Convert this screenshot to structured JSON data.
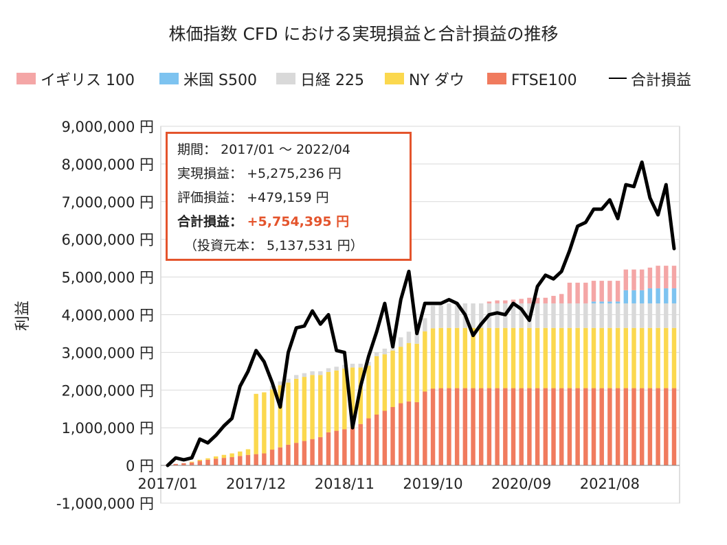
{
  "chart_data": {
    "type": "bar",
    "stacked": true,
    "title": "株価指数 CFD における実現損益と合計損益の推移",
    "ylabel": "利益",
    "ylim": [
      -1000000,
      9000000
    ],
    "y_ticks": [
      -1000000,
      0,
      1000000,
      2000000,
      3000000,
      4000000,
      5000000,
      6000000,
      7000000,
      8000000,
      9000000
    ],
    "y_tick_labels": [
      "-1,000,000 円",
      "0 円",
      "1,000,000 円",
      "2,000,000 円",
      "3,000,000 円",
      "4,000,000 円",
      "5,000,000 円",
      "6,000,000 円",
      "7,000,000 円",
      "8,000,000 円",
      "9,000,000 円"
    ],
    "x_tick_labels": [
      "2017/01",
      "2017/12",
      "2018/11",
      "2019/10",
      "2020/09",
      "2021/08"
    ],
    "grid": true,
    "legend_position": "top",
    "x": [
      "2017/01",
      "2017/02",
      "2017/03",
      "2017/04",
      "2017/05",
      "2017/06",
      "2017/07",
      "2017/08",
      "2017/09",
      "2017/10",
      "2017/11",
      "2017/12",
      "2018/01",
      "2018/02",
      "2018/03",
      "2018/04",
      "2018/05",
      "2018/06",
      "2018/07",
      "2018/08",
      "2018/09",
      "2018/10",
      "2018/11",
      "2018/12",
      "2019/01",
      "2019/02",
      "2019/03",
      "2019/04",
      "2019/05",
      "2019/06",
      "2019/07",
      "2019/08",
      "2019/09",
      "2019/10",
      "2019/11",
      "2019/12",
      "2020/01",
      "2020/02",
      "2020/03",
      "2020/04",
      "2020/05",
      "2020/06",
      "2020/07",
      "2020/08",
      "2020/09",
      "2020/10",
      "2020/11",
      "2020/12",
      "2021/01",
      "2021/02",
      "2021/03",
      "2021/04",
      "2021/05",
      "2021/06",
      "2021/07",
      "2021/08",
      "2021/09",
      "2021/10",
      "2021/11",
      "2021/12",
      "2022/01",
      "2022/02",
      "2022/03",
      "2022/04"
    ],
    "series": [
      {
        "name": "FTSE100",
        "color": "#f07b5e",
        "values": [
          20000,
          40000,
          60000,
          80000,
          120000,
          150000,
          180000,
          200000,
          220000,
          250000,
          280000,
          300000,
          320000,
          420000,
          480000,
          550000,
          600000,
          650000,
          700000,
          750000,
          880000,
          920000,
          960000,
          1000000,
          1100000,
          1250000,
          1350000,
          1450000,
          1550000,
          1650000,
          1700000,
          1680000,
          1960000,
          2040000,
          2050000,
          2050000,
          2050000,
          2050000,
          2050000,
          2050000,
          2050000,
          2050000,
          2050000,
          2050000,
          2050000,
          2050000,
          2050000,
          2050000,
          2050000,
          2050000,
          2050000,
          2050000,
          2050000,
          2050000,
          2050000,
          2050000,
          2050000,
          2050000,
          2050000,
          2050000,
          2050000,
          2050000,
          2050000,
          2050000
        ]
      },
      {
        "name": "NY ダウ",
        "color": "#fbd84e",
        "values": [
          0,
          0,
          0,
          20000,
          30000,
          40000,
          60000,
          80000,
          100000,
          120000,
          150000,
          1600000,
          1620000,
          1600000,
          1650000,
          1650000,
          1700000,
          1700000,
          1700000,
          1650000,
          1600000,
          1600000,
          1610000,
          1600000,
          1500000,
          1400000,
          1550000,
          1500000,
          1500000,
          1500000,
          1550000,
          1550000,
          1600000,
          1600000,
          1600000,
          1600000,
          1600000,
          1600000,
          1600000,
          1600000,
          1600000,
          1600000,
          1600000,
          1600000,
          1600000,
          1600000,
          1600000,
          1600000,
          1600000,
          1600000,
          1600000,
          1600000,
          1600000,
          1600000,
          1600000,
          1600000,
          1600000,
          1600000,
          1600000,
          1600000,
          1600000,
          1600000,
          1600000,
          1600000
        ]
      },
      {
        "name": "日経 225",
        "color": "#d9d9d9",
        "values": [
          0,
          0,
          0,
          0,
          0,
          0,
          0,
          0,
          0,
          0,
          0,
          0,
          0,
          100000,
          100000,
          100000,
          100000,
          100000,
          100000,
          100000,
          100000,
          100000,
          100000,
          100000,
          100000,
          100000,
          100000,
          150000,
          150000,
          250000,
          300000,
          300000,
          350000,
          600000,
          600000,
          650000,
          650000,
          650000,
          650000,
          650000,
          650000,
          650000,
          650000,
          650000,
          650000,
          650000,
          650000,
          650000,
          650000,
          650000,
          650000,
          650000,
          650000,
          650000,
          650000,
          650000,
          650000,
          650000,
          650000,
          650000,
          650000,
          650000,
          650000,
          650000
        ]
      },
      {
        "name": "米国 S500",
        "color": "#7dc3f0",
        "values": [
          0,
          0,
          0,
          0,
          0,
          0,
          0,
          0,
          0,
          0,
          0,
          0,
          0,
          0,
          0,
          0,
          0,
          0,
          0,
          0,
          0,
          0,
          0,
          0,
          0,
          0,
          0,
          0,
          0,
          0,
          0,
          0,
          0,
          0,
          0,
          0,
          0,
          0,
          0,
          0,
          0,
          0,
          0,
          0,
          0,
          0,
          0,
          0,
          0,
          0,
          0,
          0,
          0,
          50000,
          50000,
          50000,
          50000,
          350000,
          350000,
          350000,
          400000,
          400000,
          400000,
          400000
        ]
      },
      {
        "name": "イギリス 100",
        "color": "#f4a6a6",
        "values": [
          0,
          0,
          0,
          0,
          0,
          0,
          0,
          0,
          0,
          0,
          0,
          0,
          0,
          0,
          0,
          0,
          0,
          0,
          0,
          0,
          0,
          0,
          0,
          0,
          0,
          0,
          0,
          0,
          0,
          0,
          0,
          0,
          0,
          0,
          0,
          0,
          0,
          0,
          0,
          0,
          50000,
          80000,
          80000,
          100000,
          120000,
          150000,
          150000,
          150000,
          200000,
          250000,
          550000,
          550000,
          550000,
          550000,
          550000,
          550000,
          550000,
          550000,
          550000,
          550000,
          550000,
          600000,
          600000,
          600000
        ]
      }
    ],
    "total_series": {
      "name": "合計損益",
      "color": "#000000",
      "values": [
        0,
        200000,
        150000,
        200000,
        700000,
        600000,
        800000,
        1050000,
        1250000,
        2100000,
        2500000,
        3050000,
        2750000,
        2200000,
        1550000,
        3000000,
        3650000,
        3700000,
        4100000,
        3750000,
        4000000,
        3050000,
        3000000,
        1000000,
        2100000,
        2900000,
        3550000,
        4300000,
        3150000,
        4400000,
        5150000,
        3500000,
        4300000,
        4300000,
        4300000,
        4400000,
        4300000,
        4000000,
        3450000,
        3750000,
        4000000,
        4050000,
        4000000,
        4300000,
        4150000,
        3850000,
        4750000,
        5050000,
        4950000,
        5150000,
        5700000,
        6350000,
        6450000,
        6800000,
        6800000,
        7050000,
        6550000,
        7450000,
        7400000,
        8050000,
        7100000,
        6650000,
        7450000,
        5754395
      ]
    }
  },
  "info_box": {
    "period_label": "期間：",
    "period_value": "2017/01 ～ 2022/04",
    "realized_label": "実現損益：",
    "realized_value": "+5,275,236 円",
    "unrealized_label": "評価損益：",
    "unrealized_value": "+479,159 円",
    "total_label": "合計損益：",
    "total_value": "+5,754,395 円",
    "principal_text": "（投資元本： 5,137,531 円）"
  }
}
